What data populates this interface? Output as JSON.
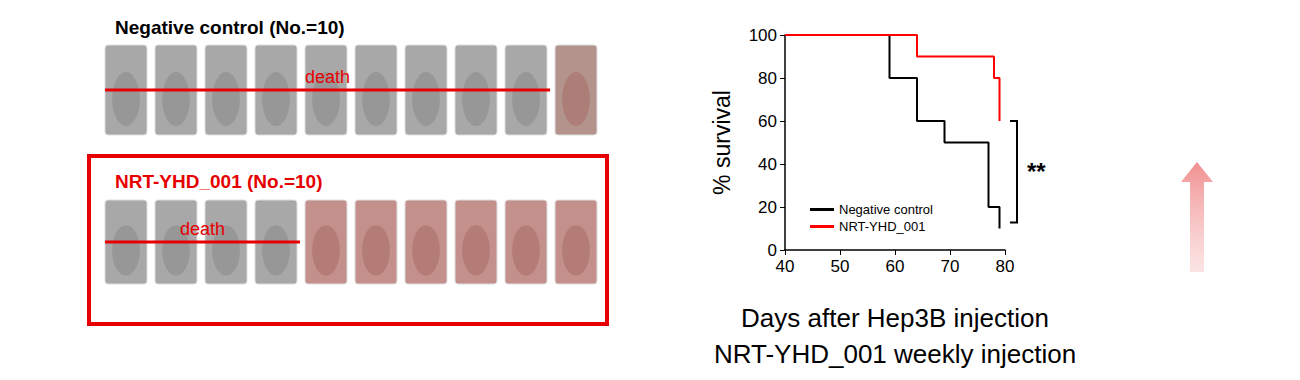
{
  "chart_data": {
    "type": "line",
    "line_style": "step",
    "xlabel": "Days after Hep3B injection\nNRT-YHD_001 weekly injection",
    "ylabel": "% survival",
    "xlim": [
      40,
      80
    ],
    "xticks": [
      40,
      50,
      60,
      70,
      80
    ],
    "ylim": [
      0,
      100
    ],
    "yticks": [
      0,
      20,
      40,
      60,
      80,
      100
    ],
    "grid": false,
    "legend": "lower left",
    "annotation": "**",
    "series": [
      {
        "name": "Negative control",
        "color": "#000000",
        "x": [
          40,
          59,
          64,
          69,
          77,
          79
        ],
        "values": [
          100,
          80,
          60,
          50,
          20,
          10
        ]
      },
      {
        "name": "NRT-YHD_001",
        "color": "#ff0000",
        "x": [
          40,
          64,
          78,
          79
        ],
        "values": [
          100,
          90,
          80,
          60
        ]
      }
    ]
  },
  "groups": [
    {
      "title": "Negative control (No.=10)",
      "death_label": "death",
      "animals": 10,
      "deaths": 9,
      "boxed": false
    },
    {
      "title": "NRT-YHD_001 (No.=10)",
      "death_label": "death",
      "animals": 10,
      "deaths": 4,
      "boxed": true
    }
  ]
}
